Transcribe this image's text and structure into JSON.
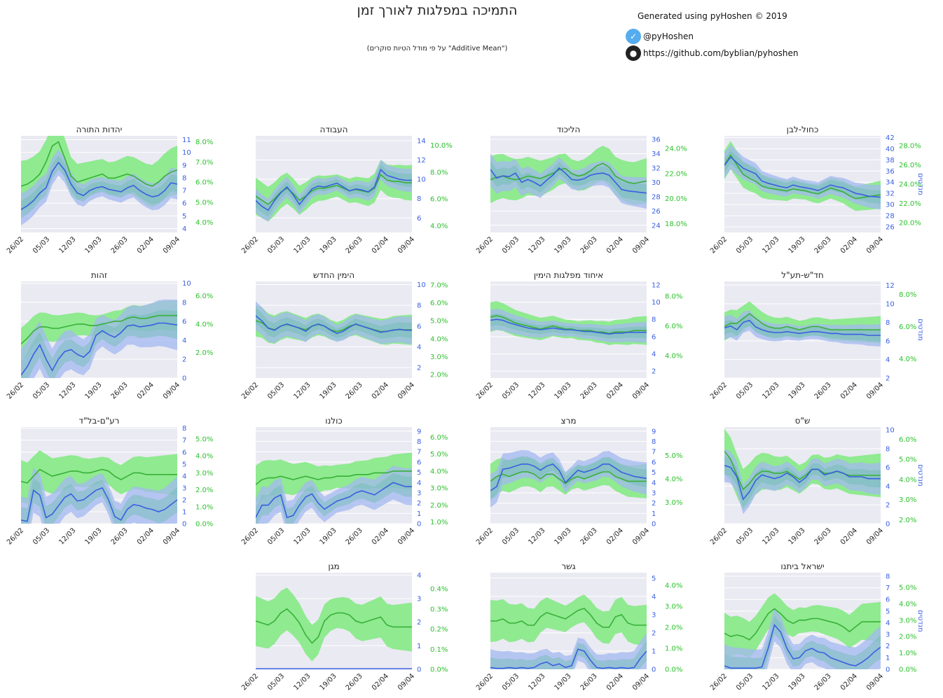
{
  "header": {
    "title": "התמיכה במפלגות לאורך זמן",
    "subtitle": "(על פי מודל הטיות סוקרים \"Additive Mean\")",
    "credit": "Generated using pyHoshen © 2019",
    "twitter": "@pyHoshen",
    "github": "https://github.com/byblian/pyhoshen"
  },
  "colors": {
    "blue_line": "#3a5fe0",
    "blue_band": "#a3b8f0",
    "green_line": "#38b038",
    "green_band": "#8aea8a",
    "overlap": "#6cbdb2",
    "plot_bg": "#eaeaf2",
    "blue_text": "#3a5fe0",
    "green_text": "#2ec02e"
  },
  "axis_titles": {
    "seats": "מנדטים",
    "support": "אחוזי תמיכה"
  },
  "x_ticks": [
    "26/02",
    "05/03",
    "12/03",
    "19/03",
    "26/03",
    "02/04",
    "09/04"
  ],
  "chart_data": [
    {
      "type": "area",
      "title": "יהדות התורה",
      "seats_ticks": [
        4,
        5,
        6,
        7,
        8,
        9,
        10,
        11
      ],
      "seats_range": [
        3.7,
        11.3
      ],
      "support_ticks": [
        "4.0%",
        "5.0%",
        "6.0%",
        "7.0%",
        "8.0%"
      ],
      "support_range": [
        3.5,
        8.3
      ],
      "seats": [
        5.5,
        5.8,
        6.2,
        6.8,
        7.2,
        8.5,
        9.2,
        8.6,
        7.5,
        6.8,
        6.6,
        7.0,
        7.2,
        7.3,
        7.1,
        7.0,
        6.9,
        7.2,
        7.4,
        7.0,
        6.7,
        6.5,
        6.6,
        7.0,
        7.6,
        7.5
      ],
      "seats_band": 1.0,
      "support": [
        5.8,
        5.9,
        6.1,
        6.4,
        7.0,
        7.8,
        8.0,
        7.2,
        6.3,
        6.0,
        6.1,
        6.2,
        6.3,
        6.4,
        6.2,
        6.2,
        6.3,
        6.4,
        6.3,
        6.1,
        5.9,
        5.8,
        6.0,
        6.3,
        6.5,
        6.6
      ],
      "support_band": 1.0,
      "show_axis_titles": false
    },
    {
      "type": "area",
      "title": "העבודה",
      "seats_ticks": [
        6,
        8,
        10,
        12,
        14
      ],
      "seats_range": [
        4.5,
        14.5
      ],
      "support_ticks": [
        "4.0%",
        "6.0%",
        "8.0%",
        "10.0%"
      ],
      "support_range": [
        3.5,
        10.7
      ],
      "seats": [
        7.8,
        7.2,
        6.8,
        7.8,
        8.6,
        9.2,
        8.4,
        7.4,
        8.2,
        9.0,
        9.3,
        9.2,
        9.4,
        9.6,
        9.2,
        8.8,
        9.0,
        8.9,
        8.7,
        9.2,
        11.0,
        10.4,
        10.2,
        10.0,
        9.9,
        9.9
      ],
      "seats_band": 1.0,
      "support": [
        6.2,
        5.9,
        5.6,
        6.0,
        6.5,
        6.8,
        6.4,
        5.9,
        6.2,
        6.6,
        6.8,
        6.8,
        6.9,
        7.0,
        6.8,
        6.6,
        6.7,
        6.6,
        6.5,
        6.8,
        7.8,
        7.4,
        7.3,
        7.3,
        7.2,
        7.2
      ],
      "support_band": 1.1,
      "show_axis_titles": false
    },
    {
      "type": "area",
      "title": "הליכוד",
      "seats_ticks": [
        24,
        26,
        28,
        30,
        32,
        34,
        36
      ],
      "seats_range": [
        23,
        36.5
      ],
      "support_ticks": [
        "18.0%",
        "20.0%",
        "22.0%",
        "24.0%"
      ],
      "support_range": [
        17.3,
        25
      ],
      "seats": [
        31.8,
        30.6,
        30.9,
        30.8,
        31.3,
        30.0,
        30.4,
        30.0,
        29.5,
        30.3,
        31.0,
        32.0,
        31.3,
        30.4,
        30.3,
        30.5,
        31.0,
        31.2,
        31.3,
        31.0,
        30.0,
        29.0,
        28.8,
        28.7,
        28.6,
        28.5
      ],
      "seats_band": 1.8,
      "support": [
        21.5,
        21.7,
        21.8,
        21.6,
        21.5,
        21.6,
        21.8,
        21.7,
        21.6,
        21.8,
        22.0,
        22.3,
        22.4,
        22.0,
        21.8,
        21.9,
        22.2,
        22.6,
        22.8,
        22.5,
        21.8,
        21.5,
        21.3,
        21.2,
        21.3,
        21.4
      ],
      "support_band": 1.5,
      "show_axis_titles": false
    },
    {
      "type": "area",
      "title": "כחול-לבן",
      "seats_ticks": [
        26,
        28,
        30,
        32,
        34,
        36,
        38,
        40,
        42
      ],
      "seats_range": [
        25,
        42.3
      ],
      "support_ticks": [
        "20.0%",
        "22.0%",
        "24.0%",
        "26.0%",
        "28.0%"
      ],
      "support_range": [
        19,
        29
      ],
      "seats": [
        37.0,
        38.5,
        37.5,
        36.5,
        36.0,
        35.5,
        34.2,
        33.8,
        33.5,
        33.2,
        33.0,
        33.5,
        33.2,
        33.0,
        32.8,
        32.5,
        33.0,
        33.5,
        33.2,
        33.0,
        32.5,
        32.0,
        31.8,
        31.5,
        31.4,
        31.3
      ],
      "seats_band": 1.8,
      "support": [
        26.0,
        27.0,
        26.0,
        25.0,
        24.6,
        24.3,
        23.8,
        23.6,
        23.5,
        23.4,
        23.3,
        23.5,
        23.4,
        23.3,
        23.1,
        23.0,
        23.3,
        23.6,
        23.4,
        23.2,
        22.8,
        22.5,
        22.6,
        22.7,
        22.8,
        22.9
      ],
      "support_band": 1.2,
      "show_axis_titles": true
    },
    {
      "type": "area",
      "title": "זהות",
      "seats_ticks": [
        0,
        2,
        4,
        6,
        8,
        10
      ],
      "seats_range": [
        0,
        10.2
      ],
      "support_ticks": [
        "2.0%",
        "4.0%",
        "6.0%"
      ],
      "support_range": [
        0.2,
        7.0
      ],
      "seats": [
        0.3,
        1.2,
        2.5,
        3.5,
        2.0,
        0.8,
        2.0,
        2.8,
        3.0,
        2.5,
        2.2,
        2.8,
        4.5,
        5.0,
        4.6,
        4.3,
        4.8,
        5.5,
        5.6,
        5.4,
        5.5,
        5.6,
        5.8,
        5.8,
        5.7,
        5.6
      ],
      "seats_band": 2.2,
      "support": [
        2.6,
        3.0,
        3.5,
        3.8,
        3.8,
        3.7,
        3.7,
        3.8,
        3.9,
        4.0,
        4.0,
        3.9,
        3.9,
        4.0,
        4.1,
        4.2,
        4.2,
        4.4,
        4.5,
        4.4,
        4.4,
        4.5,
        4.6,
        4.6,
        4.6,
        4.6
      ],
      "support_band": 0.9,
      "show_axis_titles": false
    },
    {
      "type": "area",
      "title": "הימין החדש",
      "seats_ticks": [
        2,
        4,
        6,
        8,
        10
      ],
      "seats_range": [
        1.0,
        10.3
      ],
      "support_ticks": [
        "2.0%",
        "3.0%",
        "4.0%",
        "5.0%",
        "6.0%",
        "7.0%"
      ],
      "support_range": [
        1.8,
        7.2
      ],
      "seats": [
        7.0,
        6.5,
        5.8,
        5.6,
        6.0,
        6.2,
        6.0,
        5.8,
        5.5,
        6.0,
        6.2,
        6.0,
        5.6,
        5.3,
        5.5,
        5.9,
        6.2,
        6.0,
        5.8,
        5.6,
        5.4,
        5.5,
        5.6,
        5.7,
        5.6,
        5.6
      ],
      "seats_band": 1.1,
      "support": [
        5.0,
        4.9,
        4.6,
        4.5,
        4.7,
        4.8,
        4.7,
        4.6,
        4.5,
        4.7,
        4.8,
        4.7,
        4.5,
        4.4,
        4.5,
        4.7,
        4.8,
        4.7,
        4.6,
        4.5,
        4.4,
        4.4,
        4.5,
        4.5,
        4.5,
        4.5
      ],
      "support_band": 0.7,
      "show_axis_titles": false
    },
    {
      "type": "area",
      "title": "איחוד מפלגות הימין",
      "seats_ticks": [
        2,
        4,
        6,
        8,
        10,
        12
      ],
      "seats_range": [
        1.2,
        12.4
      ],
      "support_ticks": [
        "4.0%",
        "6.0%",
        "8.0%"
      ],
      "support_range": [
        2.5,
        9.0
      ],
      "seats": [
        7.9,
        8.0,
        7.9,
        7.6,
        7.4,
        7.2,
        7.0,
        6.9,
        6.8,
        6.9,
        7.0,
        6.9,
        6.8,
        6.8,
        6.7,
        6.6,
        6.6,
        6.5,
        6.4,
        6.3,
        6.4,
        6.4,
        6.5,
        6.5,
        6.5,
        6.5
      ],
      "seats_band": 1.0,
      "support": [
        6.6,
        6.7,
        6.6,
        6.4,
        6.2,
        6.1,
        6.0,
        5.9,
        5.8,
        5.9,
        6.0,
        5.9,
        5.8,
        5.8,
        5.7,
        5.7,
        5.7,
        5.6,
        5.6,
        5.5,
        5.6,
        5.6,
        5.6,
        5.7,
        5.7,
        5.7
      ],
      "support_band": 0.8,
      "show_axis_titles": false
    },
    {
      "type": "area",
      "title": "חד\"ש-תע\"ל",
      "seats_ticks": [
        2,
        4,
        6,
        8,
        10,
        12
      ],
      "seats_range": [
        2.0,
        12.4
      ],
      "support_ticks": [
        "4.0%",
        "6.0%",
        "8.0%"
      ],
      "support_range": [
        2.8,
        8.8
      ],
      "seats": [
        7.4,
        7.6,
        7.2,
        8.0,
        8.2,
        7.5,
        7.2,
        7.0,
        6.9,
        6.9,
        7.0,
        6.9,
        6.8,
        6.9,
        7.0,
        7.0,
        6.9,
        6.8,
        6.8,
        6.7,
        6.7,
        6.7,
        6.7,
        6.6,
        6.6,
        6.6
      ],
      "seats_band": 1.0,
      "support": [
        6.0,
        6.2,
        6.2,
        6.5,
        6.8,
        6.5,
        6.2,
        6.0,
        5.9,
        5.9,
        6.0,
        5.9,
        5.8,
        5.9,
        6.0,
        6.0,
        5.9,
        5.8,
        5.8,
        5.8,
        5.8,
        5.8,
        5.8,
        5.8,
        5.8,
        5.8
      ],
      "support_band": 0.7,
      "show_axis_titles": true
    },
    {
      "type": "area",
      "title": "רע\"ם-בל\"ד",
      "seats_ticks": [
        0,
        1,
        2,
        3,
        4,
        5,
        6,
        7,
        8
      ],
      "seats_range": [
        0,
        8.1
      ],
      "support_ticks": [
        "0.0%",
        "1.0%",
        "2.0%",
        "3.0%",
        "4.0%",
        "5.0%"
      ],
      "support_range": [
        0,
        5.7
      ],
      "seats": [
        0.3,
        0.2,
        2.8,
        2.4,
        0.5,
        0.8,
        1.5,
        2.2,
        2.5,
        1.9,
        2.0,
        2.4,
        2.8,
        3.0,
        2.0,
        0.6,
        0.3,
        1.2,
        1.6,
        1.5,
        1.3,
        1.2,
        1.0,
        1.2,
        1.6,
        2.0
      ],
      "seats_band": 1.6,
      "support": [
        2.5,
        2.4,
        2.8,
        3.2,
        3.0,
        2.8,
        2.9,
        3.0,
        3.1,
        3.1,
        3.0,
        3.0,
        3.1,
        3.2,
        3.1,
        2.8,
        2.6,
        2.8,
        3.0,
        3.0,
        2.9,
        2.9,
        2.9,
        2.9,
        2.9,
        2.9
      ],
      "support_band": 1.0,
      "show_axis_titles": false
    },
    {
      "type": "area",
      "title": "כולנו",
      "seats_ticks": [
        0,
        1,
        2,
        3,
        4,
        5,
        6,
        7,
        8,
        9
      ],
      "seats_range": [
        0,
        9.4
      ],
      "support_ticks": [
        "1.0%",
        "2.0%",
        "3.0%",
        "4.0%",
        "5.0%",
        "6.0%"
      ],
      "support_range": [
        0.9,
        6.6
      ],
      "seats": [
        0.6,
        1.8,
        1.8,
        2.5,
        2.8,
        0.6,
        0.8,
        1.8,
        2.6,
        2.9,
        2.0,
        1.4,
        1.8,
        2.2,
        2.4,
        2.6,
        3.0,
        3.2,
        3.0,
        2.8,
        3.2,
        3.6,
        4.0,
        3.8,
        3.6,
        3.6
      ],
      "seats_band": 1.5,
      "support": [
        3.2,
        3.5,
        3.6,
        3.6,
        3.7,
        3.6,
        3.5,
        3.6,
        3.7,
        3.6,
        3.5,
        3.6,
        3.6,
        3.7,
        3.7,
        3.7,
        3.8,
        3.8,
        3.8,
        3.9,
        3.9,
        3.9,
        4.0,
        4.0,
        4.0,
        4.0
      ],
      "support_band": 0.9,
      "show_axis_titles": false
    },
    {
      "type": "area",
      "title": "מרצ",
      "seats_ticks": [
        0,
        1,
        2,
        3,
        4,
        5,
        6,
        7,
        8,
        9
      ],
      "seats_range": [
        0,
        9.4
      ],
      "support_ticks": [
        "3.0%",
        "4.0%",
        "5.0%"
      ],
      "support_range": [
        2.1,
        6.2
      ],
      "seats": [
        3.2,
        3.6,
        5.3,
        5.4,
        5.6,
        5.8,
        5.8,
        5.6,
        5.2,
        5.6,
        5.8,
        5.2,
        4.0,
        4.6,
        5.2,
        5.0,
        5.2,
        5.4,
        5.8,
        5.8,
        5.4,
        5.0,
        4.8,
        4.6,
        4.5,
        4.4
      ],
      "seats_band": 1.3,
      "support": [
        3.9,
        4.1,
        4.2,
        4.1,
        4.2,
        4.3,
        4.3,
        4.2,
        4.0,
        4.2,
        4.2,
        4.0,
        3.8,
        4.0,
        4.1,
        4.0,
        4.1,
        4.2,
        4.3,
        4.3,
        4.1,
        4.0,
        3.9,
        3.9,
        3.9,
        3.9
      ],
      "support_band": 0.6,
      "show_axis_titles": false
    },
    {
      "type": "area",
      "title": "ש\"ס",
      "seats_ticks": [
        0,
        2,
        4,
        6,
        8,
        10
      ],
      "seats_range": [
        0,
        10.3
      ],
      "support_ticks": [
        "2.0%",
        "3.0%",
        "4.0%",
        "5.0%",
        "6.0%"
      ],
      "support_range": [
        1.8,
        6.6
      ],
      "seats": [
        6.2,
        6.0,
        5.0,
        2.6,
        3.4,
        4.6,
        5.2,
        5.0,
        4.8,
        5.0,
        5.4,
        5.0,
        4.4,
        4.9,
        5.8,
        5.8,
        5.2,
        5.4,
        5.6,
        5.4,
        5.0,
        5.0,
        5.0,
        4.8,
        4.8,
        4.8
      ],
      "seats_band": 1.4,
      "support": [
        5.4,
        5.0,
        4.2,
        3.5,
        3.8,
        4.2,
        4.4,
        4.4,
        4.3,
        4.3,
        4.4,
        4.2,
        4.0,
        4.2,
        4.5,
        4.5,
        4.3,
        4.3,
        4.4,
        4.3,
        4.2,
        4.2,
        4.2,
        4.2,
        4.2,
        4.2
      ],
      "support_band": 0.9,
      "show_axis_titles": true
    },
    {
      "type": "area",
      "title": "מגן",
      "seats_ticks": [
        0,
        1,
        2,
        3,
        4
      ],
      "seats_range": [
        0,
        4.1
      ],
      "support_ticks": [
        "0.0%",
        "0.1%",
        "0.2%",
        "0.3%",
        "0.4%"
      ],
      "support_range": [
        0,
        0.48
      ],
      "seats": [
        0.02,
        0.02,
        0.02,
        0.02,
        0.02,
        0.02,
        0.02,
        0.02,
        0.02,
        0.02,
        0.02,
        0.02,
        0.02,
        0.02,
        0.02,
        0.02,
        0.02,
        0.02,
        0.02,
        0.02,
        0.02,
        0.02,
        0.02,
        0.02,
        0.02,
        0.02
      ],
      "seats_band": 0.01,
      "support": [
        0.24,
        0.23,
        0.22,
        0.24,
        0.28,
        0.3,
        0.27,
        0.23,
        0.17,
        0.13,
        0.16,
        0.24,
        0.27,
        0.28,
        0.28,
        0.27,
        0.24,
        0.23,
        0.24,
        0.25,
        0.26,
        0.22,
        0.21,
        0.21,
        0.21,
        0.21
      ],
      "support_band": 0.1,
      "show_axis_titles": false
    },
    {
      "type": "area",
      "title": "גשר",
      "seats_ticks": [
        0,
        1,
        2,
        3,
        4,
        5
      ],
      "seats_range": [
        0,
        5.3
      ],
      "support_ticks": [
        "0.0%",
        "1.0%",
        "2.0%",
        "3.0%",
        "4.0%"
      ],
      "support_range": [
        0,
        4.6
      ],
      "seats": [
        0.1,
        0.05,
        0.05,
        0.1,
        0.05,
        0.1,
        0.05,
        0.1,
        0.3,
        0.4,
        0.2,
        0.3,
        0.1,
        0.2,
        1.1,
        1.0,
        0.5,
        0.1,
        0.05,
        0.1,
        0.05,
        0.1,
        0.05,
        0.1,
        0.6,
        1.0
      ],
      "seats_band": 0.8,
      "support": [
        2.3,
        2.3,
        2.4,
        2.2,
        2.2,
        2.3,
        2.1,
        2.1,
        2.5,
        2.7,
        2.6,
        2.5,
        2.4,
        2.6,
        2.8,
        2.9,
        2.6,
        2.2,
        2.0,
        2.0,
        2.5,
        2.6,
        2.2,
        2.1,
        2.1,
        2.1
      ],
      "support_band": 0.8,
      "show_axis_titles": false
    },
    {
      "type": "area",
      "title": "ישראל ביתנו",
      "seats_ticks": [
        0,
        1,
        2,
        3,
        4,
        5,
        6,
        7,
        8
      ],
      "seats_range": [
        0,
        8.3
      ],
      "support_ticks": [
        "0.0%",
        "1.0%",
        "2.0%",
        "3.0%",
        "4.0%",
        "5.0%"
      ],
      "support_range": [
        0,
        5.9
      ],
      "seats": [
        0.3,
        0.1,
        0.1,
        0.1,
        0.1,
        0.1,
        0.2,
        1.8,
        3.8,
        3.2,
        1.8,
        0.9,
        1.0,
        1.6,
        1.8,
        1.5,
        1.4,
        1.0,
        0.8,
        0.6,
        0.4,
        0.3,
        0.6,
        1.0,
        1.5,
        1.9
      ],
      "seats_band": 1.5,
      "support": [
        2.2,
        2.0,
        2.1,
        2.0,
        1.8,
        2.2,
        2.8,
        3.4,
        3.7,
        3.4,
        3.0,
        2.8,
        3.0,
        3.0,
        3.1,
        3.1,
        3.0,
        2.9,
        2.8,
        2.6,
        2.3,
        2.6,
        2.9,
        2.9,
        2.9,
        2.9
      ],
      "support_band": 1.0,
      "show_axis_titles": true
    }
  ]
}
